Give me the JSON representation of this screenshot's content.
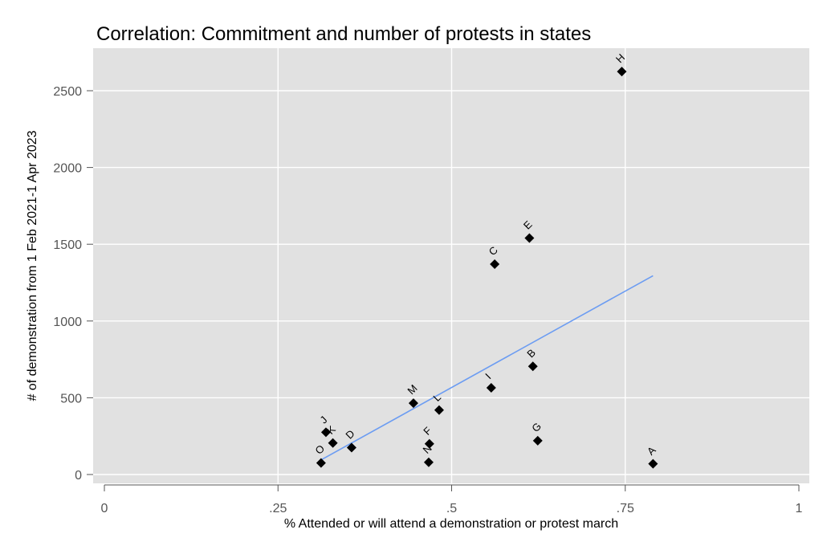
{
  "chart_data": {
    "type": "scatter",
    "title": "Correlation: Commitment and number of protests in states",
    "xlabel": "% Attended or will attend a demonstration or protest march",
    "ylabel": "# of demonstration from 1 Feb 2021-1 Apr 2023",
    "xlim": [
      0,
      1
    ],
    "ylim": [
      0,
      2600
    ],
    "x_ticks": [
      0,
      0.25,
      0.5,
      0.75,
      1
    ],
    "x_tick_labels": [
      "0",
      ".25",
      ".5",
      ".75",
      "1"
    ],
    "y_ticks": [
      0,
      500,
      1000,
      1500,
      2000,
      2500
    ],
    "y_tick_labels": [
      "0",
      "500",
      "1000",
      "1500",
      "2000",
      "2500"
    ],
    "grid": true,
    "plot_background": "#e1e1e1",
    "grid_color": "#ffffff",
    "marker_color": "#000000",
    "fit_line_color": "#6b9cf2",
    "points": [
      {
        "label": "A",
        "x": 0.79,
        "y": 70
      },
      {
        "label": "B",
        "x": 0.617,
        "y": 705
      },
      {
        "label": "C",
        "x": 0.562,
        "y": 1370
      },
      {
        "label": "D",
        "x": 0.356,
        "y": 175
      },
      {
        "label": "E",
        "x": 0.612,
        "y": 1540
      },
      {
        "label": "F",
        "x": 0.468,
        "y": 200
      },
      {
        "label": "G",
        "x": 0.624,
        "y": 220
      },
      {
        "label": "H",
        "x": 0.745,
        "y": 2625
      },
      {
        "label": "I",
        "x": 0.557,
        "y": 565
      },
      {
        "label": "J",
        "x": 0.319,
        "y": 275
      },
      {
        "label": "K",
        "x": 0.329,
        "y": 205
      },
      {
        "label": "L",
        "x": 0.482,
        "y": 420
      },
      {
        "label": "M",
        "x": 0.445,
        "y": 465
      },
      {
        "label": "N",
        "x": 0.467,
        "y": 80
      },
      {
        "label": "O",
        "x": 0.312,
        "y": 75
      }
    ],
    "fit_line": {
      "x": [
        0.312,
        0.79
      ],
      "y": [
        95,
        1295
      ]
    }
  }
}
